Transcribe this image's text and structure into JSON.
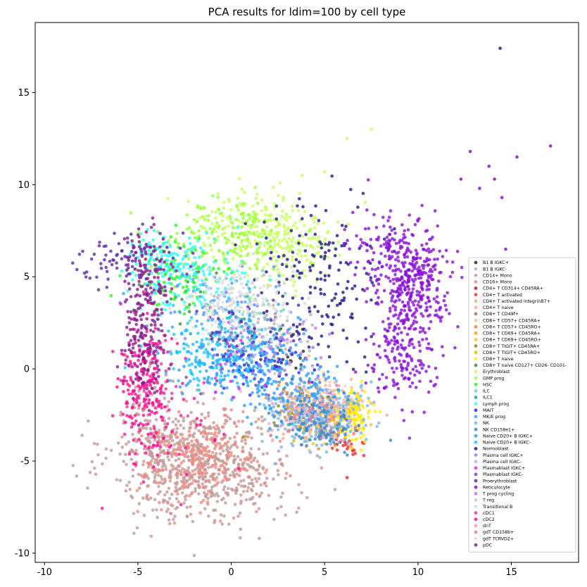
{
  "chart_data": {
    "type": "scatter",
    "title": "PCA results for ldim=100 by cell type",
    "xlabel": "",
    "ylabel": "",
    "xlim": [
      -10.5,
      18.6
    ],
    "ylim": [
      -10.5,
      18.8
    ],
    "xticks": [
      -10,
      -5,
      0,
      5,
      10,
      15
    ],
    "yticks": [
      -10,
      -5,
      0,
      5,
      10,
      15
    ],
    "grid": false,
    "legend_position": "right",
    "series": [
      {
        "name": "B1 B IGKC+",
        "color": "#2b2b2b",
        "clusters": [
          {
            "cx": 3.0,
            "cy": 1.0,
            "sx": 0.8,
            "sy": 0.8,
            "n": 20
          }
        ]
      },
      {
        "name": "B1 B IGKC-",
        "color": "#b5b5b5",
        "clusters": [
          {
            "cx": 2.0,
            "cy": 2.0,
            "sx": 1.2,
            "sy": 1.0,
            "n": 40
          }
        ]
      },
      {
        "name": "CD14+ Mono",
        "color": "#c49a98",
        "clusters": [
          {
            "cx": -1.5,
            "cy": -5.2,
            "sx": 2.4,
            "sy": 1.5,
            "n": 650
          },
          {
            "cx": -4.2,
            "cy": -3.2,
            "sx": 0.8,
            "sy": 1.4,
            "n": 120
          }
        ]
      },
      {
        "name": "CD16+ Mono",
        "color": "#f08a80",
        "clusters": [
          {
            "cx": -1.5,
            "cy": -5.0,
            "sx": 1.6,
            "sy": 1.2,
            "n": 250
          }
        ]
      },
      {
        "name": "CD4+ T CD314+ CD45RA+",
        "color": "#b22222",
        "clusters": [
          {
            "cx": 6.0,
            "cy": -3.6,
            "sx": 0.5,
            "sy": 0.4,
            "n": 12
          }
        ]
      },
      {
        "name": "CD4+ T activated",
        "color": "#ff2a2a",
        "clusters": [
          {
            "cx": 6.3,
            "cy": -4.2,
            "sx": 0.4,
            "sy": 0.4,
            "n": 20
          }
        ]
      },
      {
        "name": "CD4+ T activated integrinB7+",
        "color": "#d9b48f",
        "clusters": [
          {
            "cx": 5.0,
            "cy": -2.2,
            "sx": 1.0,
            "sy": 0.6,
            "n": 50
          }
        ]
      },
      {
        "name": "CD4+ T naive",
        "color": "#f4b090",
        "clusters": [
          {
            "cx": 5.2,
            "cy": -2.5,
            "sx": 1.2,
            "sy": 0.8,
            "n": 110
          }
        ]
      },
      {
        "name": "CD8+ T CD49f+",
        "color": "#a0785a",
        "clusters": [
          {
            "cx": 4.0,
            "cy": -1.5,
            "sx": 1.0,
            "sy": 0.7,
            "n": 25
          }
        ]
      },
      {
        "name": "CD8+ T CD57+ CD45RA+",
        "color": "#f0c090",
        "clusters": [
          {
            "cx": 4.5,
            "cy": -1.8,
            "sx": 1.0,
            "sy": 0.8,
            "n": 45
          }
        ]
      },
      {
        "name": "CD8+ T CD57+ CD45RO+",
        "color": "#e08a40",
        "clusters": [
          {
            "cx": 4.0,
            "cy": -2.2,
            "sx": 1.2,
            "sy": 0.7,
            "n": 45
          }
        ]
      },
      {
        "name": "CD8+ T CD69+ CD45RA+",
        "color": "#ffa500",
        "clusters": [
          {
            "cx": 4.8,
            "cy": -2.5,
            "sx": 0.9,
            "sy": 0.6,
            "n": 35
          }
        ]
      },
      {
        "name": "CD8+ T CD69+ CD45RO+",
        "color": "#ffc020",
        "clusters": [
          {
            "cx": 5.5,
            "cy": -2.8,
            "sx": 0.8,
            "sy": 0.6,
            "n": 30
          }
        ]
      },
      {
        "name": "CD8+ T TIGIT+ CD45RA+",
        "color": "#8b8b20",
        "clusters": [
          {
            "cx": 3.8,
            "cy": -2.0,
            "sx": 0.8,
            "sy": 0.6,
            "n": 20
          }
        ]
      },
      {
        "name": "CD8+ T TIGIT+ CD45RO+",
        "color": "#d4c000",
        "clusters": [
          {
            "cx": 4.2,
            "cy": -2.4,
            "sx": 0.8,
            "sy": 0.6,
            "n": 20
          }
        ]
      },
      {
        "name": "CD8+ T naive",
        "color": "#ffee00",
        "clusters": [
          {
            "cx": 6.6,
            "cy": -2.6,
            "sx": 0.45,
            "sy": 0.7,
            "n": 90
          }
        ]
      },
      {
        "name": "CD8+ T naive CD127+ CD26- CD101-",
        "color": "#3c8c3c",
        "clusters": [
          {
            "cx": -2.5,
            "cy": 4.5,
            "sx": 1.2,
            "sy": 1.0,
            "n": 20
          }
        ]
      },
      {
        "name": "Erythroblast",
        "color": "#c8ff60",
        "clusters": [
          {
            "cx": 1.5,
            "cy": 7.5,
            "sx": 1.8,
            "sy": 1.1,
            "n": 260
          },
          {
            "cx": 3.5,
            "cy": 6.0,
            "sx": 1.3,
            "sy": 1.2,
            "n": 70
          }
        ]
      },
      {
        "name": "GMP prog",
        "color": "#9aff40",
        "clusters": [
          {
            "cx": -0.5,
            "cy": 7.0,
            "sx": 1.8,
            "sy": 1.1,
            "n": 160
          }
        ]
      },
      {
        "name": "HSC",
        "color": "#22ff22",
        "clusters": [
          {
            "cx": -2.8,
            "cy": 5.0,
            "sx": 1.2,
            "sy": 1.0,
            "n": 90
          }
        ]
      },
      {
        "name": "ILC",
        "color": "#70d8b8",
        "clusters": [
          {
            "cx": 1.0,
            "cy": 2.5,
            "sx": 1.3,
            "sy": 1.0,
            "n": 40
          }
        ]
      },
      {
        "name": "ILC1",
        "color": "#20a0a0",
        "clusters": [
          {
            "cx": 0.5,
            "cy": 2.0,
            "sx": 1.2,
            "sy": 1.0,
            "n": 25
          }
        ]
      },
      {
        "name": "Lymph prog",
        "color": "#30ffff",
        "clusters": [
          {
            "cx": -2.3,
            "cy": 5.2,
            "sx": 1.4,
            "sy": 0.9,
            "n": 160
          },
          {
            "cx": -4.5,
            "cy": 6.3,
            "sx": 0.6,
            "sy": 0.6,
            "n": 40
          }
        ]
      },
      {
        "name": "MAIT",
        "color": "#2a2aff",
        "clusters": [
          {
            "cx": 1.5,
            "cy": 0.5,
            "sx": 1.2,
            "sy": 0.8,
            "n": 70
          }
        ]
      },
      {
        "name": "MK/E prog",
        "color": "#4aa0ff",
        "clusters": [
          {
            "cx": -1.0,
            "cy": 3.5,
            "sx": 1.5,
            "sy": 1.0,
            "n": 70
          }
        ]
      },
      {
        "name": "NK",
        "color": "#7ab8e8",
        "clusters": [
          {
            "cx": 4.5,
            "cy": -2.5,
            "sx": 1.3,
            "sy": 0.9,
            "n": 220
          }
        ]
      },
      {
        "name": "NK CD158e1+",
        "color": "#3a88c8",
        "clusters": [
          {
            "cx": 4.8,
            "cy": -2.8,
            "sx": 1.0,
            "sy": 0.8,
            "n": 120
          }
        ]
      },
      {
        "name": "Naive CD20+ B IGKC+",
        "color": "#2aa0ff",
        "clusters": [
          {
            "cx": 0.5,
            "cy": 0.5,
            "sx": 1.6,
            "sy": 1.0,
            "n": 220
          },
          {
            "cx": 3.5,
            "cy": -1.2,
            "sx": 1.3,
            "sy": 0.9,
            "n": 120
          }
        ]
      },
      {
        "name": "Naive CD20+ B IGKC-",
        "color": "#1ec8ff",
        "clusters": [
          {
            "cx": -1.0,
            "cy": 1.0,
            "sx": 1.6,
            "sy": 1.0,
            "n": 130
          }
        ]
      },
      {
        "name": "Normoblast",
        "color": "#1a1a8c",
        "clusters": [
          {
            "cx": 5.0,
            "cy": 5.0,
            "sx": 1.7,
            "sy": 2.1,
            "n": 170
          }
        ]
      },
      {
        "name": "Plasma cell IGKC+",
        "color": "#8a80ff",
        "clusters": [
          {
            "cx": 1.0,
            "cy": 2.5,
            "sx": 1.5,
            "sy": 1.2,
            "n": 30
          }
        ]
      },
      {
        "name": "Plasma cell IGKC-",
        "color": "#b4b4ff",
        "clusters": [
          {
            "cx": 0.0,
            "cy": 3.0,
            "sx": 1.5,
            "sy": 1.2,
            "n": 25
          }
        ]
      },
      {
        "name": "Plasmablast IGKC+",
        "color": "#ee22ee",
        "clusters": [
          {
            "cx": 0.0,
            "cy": 0.0,
            "sx": 1.5,
            "sy": 1.2,
            "n": 15
          }
        ]
      },
      {
        "name": "Plasmablast IGKC-",
        "color": "#6a50b8",
        "clusters": [
          {
            "cx": 1.0,
            "cy": 1.0,
            "sx": 1.5,
            "sy": 1.2,
            "n": 25
          }
        ]
      },
      {
        "name": "Proerythroblast",
        "color": "#5a2aa8",
        "clusters": [
          {
            "cx": -5.5,
            "cy": 6.2,
            "sx": 1.3,
            "sy": 0.7,
            "n": 90
          },
          {
            "cx": 1.0,
            "cy": 2.0,
            "sx": 2.0,
            "sy": 1.0,
            "n": 40
          }
        ]
      },
      {
        "name": "Reticulocyte",
        "color": "#8a10d8",
        "clusters": [
          {
            "cx": 9.8,
            "cy": 5.0,
            "sx": 1.0,
            "sy": 1.3,
            "n": 320
          },
          {
            "cx": 9.2,
            "cy": 1.0,
            "sx": 0.9,
            "sy": 1.4,
            "n": 200
          },
          {
            "cx": 8.0,
            "cy": 6.5,
            "sx": 1.0,
            "sy": 1.2,
            "n": 80
          }
        ]
      },
      {
        "name": "T prog cycling",
        "color": "#c878f0",
        "clusters": [
          {
            "cx": 2.5,
            "cy": 1.0,
            "sx": 1.5,
            "sy": 1.0,
            "n": 30
          }
        ]
      },
      {
        "name": "T reg",
        "color": "#e4b8e4",
        "clusters": [
          {
            "cx": 4.0,
            "cy": -2.0,
            "sx": 1.3,
            "sy": 0.8,
            "n": 40
          }
        ]
      },
      {
        "name": "Transitional B",
        "color": "#dcdcdc",
        "clusters": [
          {
            "cx": 0.5,
            "cy": 3.5,
            "sx": 1.5,
            "sy": 1.1,
            "n": 170
          }
        ]
      },
      {
        "name": "cDC1",
        "color": "#e0409a",
        "clusters": [
          {
            "cx": -4.3,
            "cy": -1.5,
            "sx": 0.7,
            "sy": 1.5,
            "n": 40
          }
        ]
      },
      {
        "name": "cDC2",
        "color": "#ff1090",
        "clusters": [
          {
            "cx": -4.6,
            "cy": -1.0,
            "sx": 0.7,
            "sy": 1.8,
            "n": 190
          },
          {
            "cx": -3.0,
            "cy": -4.0,
            "sx": 1.5,
            "sy": 1.5,
            "n": 30
          }
        ]
      },
      {
        "name": "dnT",
        "color": "#f89ac0",
        "clusters": [
          {
            "cx": 4.0,
            "cy": -2.0,
            "sx": 1.0,
            "sy": 0.7,
            "n": 20
          }
        ]
      },
      {
        "name": "gdT CD158b+",
        "color": "#e080a0",
        "clusters": [
          {
            "cx": 4.5,
            "cy": -2.5,
            "sx": 1.0,
            "sy": 0.7,
            "n": 25
          }
        ]
      },
      {
        "name": "gdT TCRVD2+",
        "color": "#f8d0d8",
        "clusters": [
          {
            "cx": 4.2,
            "cy": -2.0,
            "sx": 1.0,
            "sy": 0.7,
            "n": 20
          }
        ]
      },
      {
        "name": "pDC",
        "color": "#8a1c8c",
        "clusters": [
          {
            "cx": -4.5,
            "cy": 3.5,
            "sx": 0.6,
            "sy": 2.0,
            "n": 200
          },
          {
            "cx": -4.8,
            "cy": 0.5,
            "sx": 0.5,
            "sy": 1.2,
            "n": 60
          }
        ]
      }
    ],
    "outliers": [
      {
        "x": 14.4,
        "y": 17.4,
        "color": "#1a1a8c"
      },
      {
        "x": 7.5,
        "y": 13.0,
        "color": "#c8ff60"
      },
      {
        "x": 6.2,
        "y": 12.5,
        "color": "#c8ff60"
      },
      {
        "x": 17.1,
        "y": 12.1,
        "color": "#8a10d8"
      },
      {
        "x": 15.3,
        "y": 11.5,
        "color": "#8a10d8"
      },
      {
        "x": 12.8,
        "y": 11.8,
        "color": "#8a10d8"
      },
      {
        "x": 13.8,
        "y": 11.0,
        "color": "#8a10d8"
      },
      {
        "x": 14.1,
        "y": 10.3,
        "color": "#8a10d8"
      },
      {
        "x": 12.3,
        "y": 10.3,
        "color": "#8a10d8"
      },
      {
        "x": 13.3,
        "y": 9.8,
        "color": "#8a10d8"
      },
      {
        "x": 14.5,
        "y": 9.3,
        "color": "#8a10d8"
      },
      {
        "x": 14.7,
        "y": 6.5,
        "color": "#8a10d8"
      },
      {
        "x": 5.0,
        "y": 10.7,
        "color": "#c8ff60"
      },
      {
        "x": 3.8,
        "y": 10.5,
        "color": "#c8ff60"
      },
      {
        "x": 1.5,
        "y": -9.2,
        "color": "#c49a98"
      },
      {
        "x": 6.2,
        "y": -5.9,
        "color": "#ff2a2a"
      },
      {
        "x": 0.5,
        "y": -8.7,
        "color": "#c49a98"
      }
    ]
  }
}
